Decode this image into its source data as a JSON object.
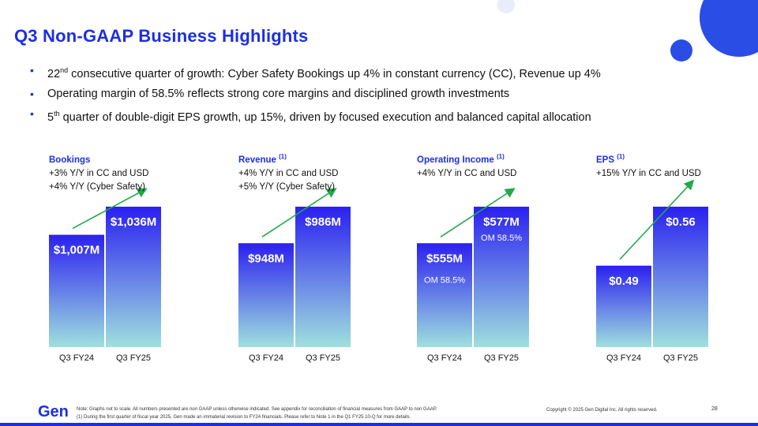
{
  "title": "Q3 Non-GAAP Business Highlights",
  "bullets": [
    {
      "lead": "22",
      "sup": "nd",
      "text": " consecutive quarter of growth: Cyber Safety Bookings up 4% in constant currency (CC), Revenue up 4%"
    },
    {
      "lead": "",
      "sup": "",
      "text": "Operating margin of 58.5% reflects strong core margins and disciplined growth investments"
    },
    {
      "lead": "5",
      "sup": "th",
      "text": " quarter of double-digit EPS growth, up 15%, driven by focused execution and balanced capital allocation"
    }
  ],
  "colors": {
    "accent": "#1c2fe0",
    "bar_top": "#2b20f0",
    "bar_bottom": "#9fe0de",
    "arrow": "#22a94a",
    "deco_circle": "#2a4de6"
  },
  "chart_data": [
    {
      "type": "bar",
      "title": "Bookings",
      "title_sup": "",
      "subtitles": [
        "+3% Y/Y in CC and USD",
        "+4% Y/Y (Cyber Safety)"
      ],
      "categories": [
        "Q3 FY24",
        "Q3 FY25"
      ],
      "values": [
        1007,
        1036
      ],
      "value_labels": [
        "$1,007M",
        "$1,036M"
      ],
      "annotations": [
        "",
        ""
      ],
      "unit": "$M"
    },
    {
      "type": "bar",
      "title": "Revenue",
      "title_sup": "(1)",
      "subtitles": [
        "+4% Y/Y in CC and USD",
        "+5% Y/Y (Cyber Safety)"
      ],
      "categories": [
        "Q3 FY24",
        "Q3 FY25"
      ],
      "values": [
        948,
        986
      ],
      "value_labels": [
        "$948M",
        "$986M"
      ],
      "annotations": [
        "",
        ""
      ],
      "unit": "$M"
    },
    {
      "type": "bar",
      "title": "Operating Income",
      "title_sup": "(1)",
      "subtitles": [
        "+4% Y/Y in CC and USD"
      ],
      "categories": [
        "Q3 FY24",
        "Q3 FY25"
      ],
      "values": [
        555,
        577
      ],
      "value_labels": [
        "$555M",
        "$577M"
      ],
      "annotations": [
        "OM 58.5%",
        "OM 58.5%"
      ],
      "unit": "$M"
    },
    {
      "type": "bar",
      "title": "EPS",
      "title_sup": "(1)",
      "subtitles": [
        "+15% Y/Y in CC and USD"
      ],
      "categories": [
        "Q3 FY24",
        "Q3 FY25"
      ],
      "values": [
        0.49,
        0.56
      ],
      "value_labels": [
        "$0.49",
        "$0.56"
      ],
      "annotations": [
        "",
        ""
      ],
      "unit": "$"
    }
  ],
  "footer": {
    "logo": "Gen",
    "note_line1": "Note: Graphs not to scale. All numbers presented are non GAAP unless otherwise indicated. See appendix for reconciliation of financial measures from GAAP to non GAAP.",
    "note_line2": "(1) During the first quarter of fiscal year 2025, Gen made an immaterial revision to FY24 financials.  Please refer to Note 1 in the Q1 FY25 10-Q for more details.",
    "copyright": "Copyright © 2025 Gen Digital Inc. All rights reserved.",
    "page": "28"
  }
}
